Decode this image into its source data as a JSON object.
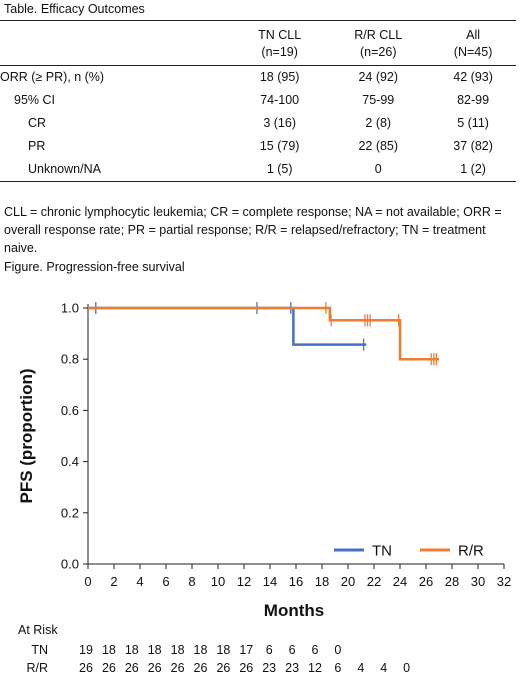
{
  "table": {
    "title": "Table. Efficacy Outcomes",
    "columns": [
      {
        "line1": "",
        "line2": ""
      },
      {
        "line1": "TN CLL",
        "line2": "(n=19)"
      },
      {
        "line1": "R/R CLL",
        "line2": "(n=26)"
      },
      {
        "line1": "All",
        "line2": "(N=45)"
      }
    ],
    "rows": [
      {
        "label": "ORR (≥ PR), n (%)",
        "tn": "18 (95)",
        "rr": "24 (92)",
        "all": "42 (93)"
      },
      {
        "label": "95% CI",
        "tn": "74-100",
        "rr": "75-99",
        "all": "82-99"
      },
      {
        "label": "CR",
        "tn": "3 (16)",
        "rr": "2 (8)",
        "all": "5 (11)"
      },
      {
        "label": "PR",
        "tn": "15 (79)",
        "rr": "22 (85)",
        "all": "37 (82)"
      },
      {
        "label": "Unknown/NA",
        "tn": "1 (5)",
        "rr": "0",
        "all": "1 (2)"
      }
    ],
    "footnote": "CLL = chronic lymphocytic leukemia; CR = complete response; NA = not available; ORR = overall response rate; PR = partial response; R/R = relapsed/refractory; TN = treatment naive."
  },
  "figure": {
    "title": "Figure. Progression-free survival"
  },
  "chart_data": {
    "type": "line",
    "step": true,
    "ylabel": "PFS (proportion)",
    "xlabel": "Months",
    "xlim": [
      0,
      32
    ],
    "ylim": [
      0,
      1.0
    ],
    "xticks": [
      0,
      2,
      4,
      6,
      8,
      10,
      12,
      14,
      16,
      18,
      20,
      22,
      24,
      26,
      28,
      30,
      32
    ],
    "yticks": [
      0.0,
      0.2,
      0.4,
      0.6,
      0.8,
      1.0
    ],
    "ytick_labels": [
      "0.0",
      "0.2",
      "0.4",
      "0.6",
      "0.8",
      "1.0"
    ],
    "grid": false,
    "legend_position": "bottom-right",
    "series": [
      {
        "name": "TN",
        "color": "#4472c4",
        "steps": [
          [
            0,
            1.0
          ],
          [
            15.8,
            1.0
          ],
          [
            15.8,
            0.857
          ],
          [
            21.4,
            0.857
          ]
        ],
        "censor_marks": [
          [
            0.6,
            1.0
          ],
          [
            13.0,
            1.0
          ],
          [
            15.6,
            1.0
          ],
          [
            21.2,
            0.857
          ]
        ]
      },
      {
        "name": "R/R",
        "color": "#ed7d31",
        "steps": [
          [
            0,
            1.0
          ],
          [
            18.6,
            1.0
          ],
          [
            18.6,
            0.952
          ],
          [
            24.0,
            0.952
          ],
          [
            24.0,
            0.8
          ],
          [
            27.0,
            0.8
          ]
        ],
        "censor_marks": [
          [
            18.3,
            1.0
          ],
          [
            18.7,
            0.952
          ],
          [
            21.3,
            0.952
          ],
          [
            21.5,
            0.952
          ],
          [
            21.7,
            0.952
          ],
          [
            23.9,
            0.952
          ],
          [
            26.4,
            0.8
          ],
          [
            26.6,
            0.8
          ],
          [
            26.8,
            0.8
          ]
        ]
      }
    ],
    "at_risk": {
      "title": "At Risk",
      "rows": [
        {
          "name": "TN",
          "values": [
            "19",
            "18",
            "18",
            "18",
            "18",
            "18",
            "18",
            "17",
            "6",
            "6",
            "6",
            "0"
          ]
        },
        {
          "name": "R/R",
          "values": [
            "26",
            "26",
            "26",
            "26",
            "26",
            "26",
            "26",
            "26",
            "23",
            "23",
            "12",
            "6",
            "4",
            "4",
            "0"
          ]
        }
      ]
    }
  }
}
